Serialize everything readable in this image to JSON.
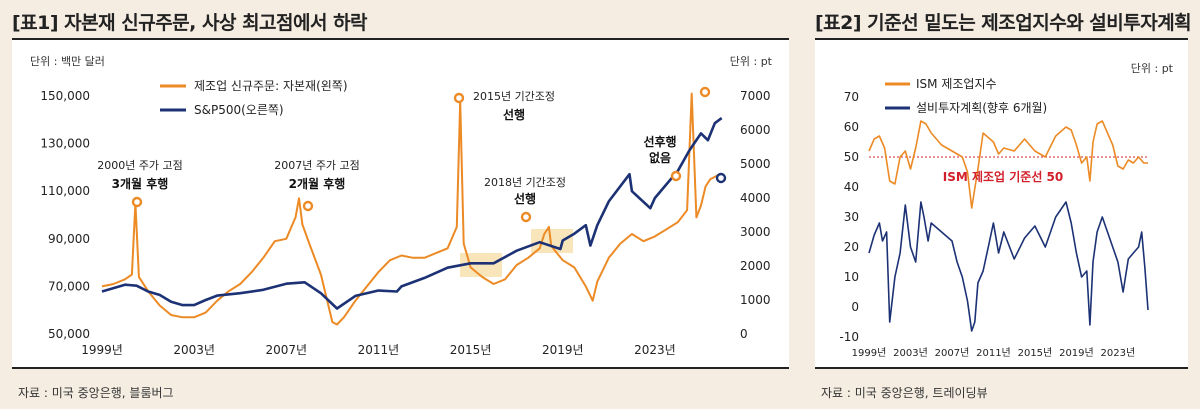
{
  "colors": {
    "orange": "#ec8a25",
    "navy": "#1c3275",
    "red": "#d2202a",
    "background": "#f5ede2",
    "highlight": "#f6dfa8"
  },
  "left": {
    "title": "[표1] 자본재 신규주문, 사상 최고점에서 하락",
    "source": "자료 : 미국 중앙은행, 블룸버그",
    "unit_left": "단위 : 백만 달러",
    "unit_right": "단위 : pt",
    "legend": [
      "제조업 신규주문: 자본재(왼쪽)",
      "S&P500(오른쪽)"
    ],
    "annotations": [
      {
        "line1": "2000년 주가 고점",
        "line2": "3개월 후행"
      },
      {
        "line1": "2007년 주가 고점",
        "line2": "2개월 후행"
      },
      {
        "line1": "2015년 기간조정",
        "line2": "선행"
      },
      {
        "line1": "2018년 기간조정",
        "line2": "선행"
      },
      {
        "line1": "선후행",
        "line2": "없음"
      }
    ]
  },
  "right": {
    "title": "[표2] 기준선 밑도는 제조업지수와 설비투자계획",
    "source": "자료 : 미국 중앙은행, 트레이딩뷰",
    "unit": "단위 : pt",
    "legend": [
      "ISM 제조업지수",
      "설비투자계획(향후 6개월)"
    ],
    "baseline_label": "ISM 제조업 기준선 50"
  },
  "chart_data": [
    {
      "type": "line",
      "title": "자본재 신규주문, 사상 최고점에서 하락",
      "x_range": [
        1999,
        2026
      ],
      "xtick_labels": [
        "1999년",
        "2003년",
        "2007년",
        "2011년",
        "2015년",
        "2019년",
        "2023년"
      ],
      "ylim_left": [
        50000,
        150000
      ],
      "ytick_labels_left": [
        "50,000",
        "70,000",
        "90,000",
        "110,000",
        "130,000",
        "150,000"
      ],
      "ylim_right": [
        0,
        7000
      ],
      "ytick_labels_right": [
        "0",
        "1000",
        "2000",
        "3000",
        "4000",
        "5000",
        "6000",
        "7000"
      ],
      "series": [
        {
          "name": "제조업 신규주문: 자본재(왼쪽)",
          "axis": "left",
          "x": [
            1999,
            1999.5,
            2000,
            2000.3,
            2000.45,
            2000.6,
            2001,
            2001.5,
            2002,
            2002.5,
            2003,
            2003.5,
            2004,
            2004.5,
            2005,
            2005.5,
            2006,
            2006.5,
            2007,
            2007.4,
            2007.55,
            2007.7,
            2008,
            2008.5,
            2009,
            2009.2,
            2009.5,
            2010,
            2010.5,
            2011,
            2011.5,
            2012,
            2012.5,
            2013,
            2013.5,
            2014,
            2014.4,
            2014.55,
            2014.7,
            2015,
            2015.5,
            2016,
            2016.5,
            2017,
            2017.5,
            2018,
            2018.2,
            2018.4,
            2018.5,
            2019,
            2019.5,
            2020,
            2020.3,
            2020.5,
            2021,
            2021.5,
            2022,
            2022.5,
            2023,
            2023.5,
            2024,
            2024.4,
            2024.6,
            2024.8,
            2025,
            2025.2,
            2025.4,
            2025.6,
            2025.8
          ],
          "values": [
            70000,
            71000,
            73000,
            75000,
            105000,
            74000,
            68000,
            62000,
            58000,
            57000,
            57000,
            59000,
            64000,
            68000,
            71000,
            76000,
            82000,
            89000,
            90000,
            99000,
            107000,
            96000,
            88000,
            75000,
            55000,
            54000,
            57000,
            64000,
            70000,
            76000,
            81000,
            83000,
            82000,
            82000,
            84000,
            86000,
            95000,
            148000,
            88000,
            78000,
            74000,
            71000,
            73000,
            79000,
            82000,
            86000,
            92000,
            95000,
            87000,
            81000,
            78000,
            70000,
            64000,
            72000,
            82000,
            88000,
            92000,
            89000,
            91000,
            94000,
            97000,
            102000,
            151000,
            99000,
            104000,
            112000,
            115000,
            116000,
            117000
          ]
        },
        {
          "name": "S&P500(오른쪽)",
          "axis": "right",
          "x": [
            1999,
            1999.5,
            2000,
            2000.5,
            2001,
            2001.5,
            2002,
            2002.5,
            2003,
            2003.5,
            2004,
            2005,
            2006,
            2007,
            2007.8,
            2008.5,
            2009.2,
            2010,
            2011,
            2011.8,
            2012,
            2013,
            2014,
            2015,
            2016,
            2017,
            2018,
            2018.9,
            2019,
            2019.5,
            2020,
            2020.2,
            2020.5,
            2021,
            2021.9,
            2022,
            2022.8,
            2023,
            2023.5,
            2024,
            2024.5,
            2025,
            2025.3,
            2025.6,
            2025.9
          ],
          "values": [
            1250,
            1350,
            1450,
            1420,
            1250,
            1150,
            950,
            850,
            850,
            1000,
            1130,
            1200,
            1300,
            1480,
            1520,
            1200,
            750,
            1120,
            1280,
            1250,
            1400,
            1650,
            1950,
            2080,
            2080,
            2450,
            2700,
            2500,
            2750,
            2950,
            3200,
            2600,
            3200,
            3900,
            4700,
            4200,
            3700,
            4000,
            4400,
            4800,
            5400,
            5900,
            5700,
            6200,
            6350
          ]
        }
      ]
    },
    {
      "type": "line",
      "title": "기준선 밑도는 제조업지수와 설비투자계획",
      "x_range": [
        1999,
        2026
      ],
      "xtick_labels": [
        "1999년",
        "2003년",
        "2007년",
        "2011년",
        "2015년",
        "2019년",
        "2023년"
      ],
      "ylim": [
        -10,
        70
      ],
      "ytick_labels": [
        "-10",
        "0",
        "10",
        "20",
        "30",
        "40",
        "50",
        "60",
        "70"
      ],
      "baseline": 50,
      "series": [
        {
          "name": "ISM 제조업지수",
          "x": [
            1999,
            1999.5,
            2000,
            2000.5,
            2001,
            2001.5,
            2002,
            2002.5,
            2003,
            2003.5,
            2004,
            2004.5,
            2005,
            2006,
            2007,
            2008,
            2008.5,
            2008.9,
            2009.5,
            2010,
            2011,
            2011.5,
            2012,
            2013,
            2014,
            2015,
            2016,
            2017,
            2018,
            2018.5,
            2019,
            2019.5,
            2020,
            2020.3,
            2020.6,
            2021,
            2021.5,
            2022,
            2022.5,
            2023,
            2023.5,
            2024,
            2024.5,
            2025,
            2025.5,
            2025.9
          ],
          "values": [
            52,
            56,
            57,
            53,
            42,
            41,
            50,
            52,
            46,
            53,
            62,
            61,
            58,
            54,
            52,
            50,
            45,
            33,
            46,
            58,
            55,
            51,
            53,
            52,
            56,
            52,
            50,
            57,
            60,
            59,
            54,
            48,
            50,
            42,
            55,
            61,
            62,
            58,
            54,
            47,
            46,
            49,
            48,
            50,
            48,
            48
          ]
        },
        {
          "name": "설비투자계획(향후 6개월)",
          "x": [
            1999,
            1999.5,
            2000,
            2000.3,
            2000.7,
            2001,
            2001.5,
            2002,
            2002.5,
            2003,
            2003.5,
            2004,
            2004.3,
            2004.7,
            2005,
            2006,
            2007,
            2007.5,
            2008,
            2008.5,
            2008.9,
            2009.2,
            2009.5,
            2010,
            2010.5,
            2011,
            2011.5,
            2012,
            2013,
            2014,
            2015,
            2016,
            2017,
            2018,
            2018.5,
            2019,
            2019.5,
            2020,
            2020.3,
            2020.6,
            2021,
            2021.5,
            2022,
            2022.5,
            2023,
            2023.5,
            2024,
            2024.5,
            2025,
            2025.3,
            2025.6,
            2025.9
          ],
          "values": [
            18,
            24,
            28,
            22,
            25,
            -5,
            10,
            18,
            34,
            20,
            15,
            35,
            30,
            22,
            28,
            25,
            22,
            15,
            10,
            2,
            -8,
            -5,
            8,
            12,
            20,
            28,
            18,
            25,
            16,
            23,
            27,
            20,
            30,
            35,
            28,
            18,
            10,
            12,
            -6,
            15,
            25,
            30,
            25,
            20,
            15,
            5,
            16,
            18,
            20,
            25,
            13,
            -1
          ]
        }
      ]
    }
  ]
}
